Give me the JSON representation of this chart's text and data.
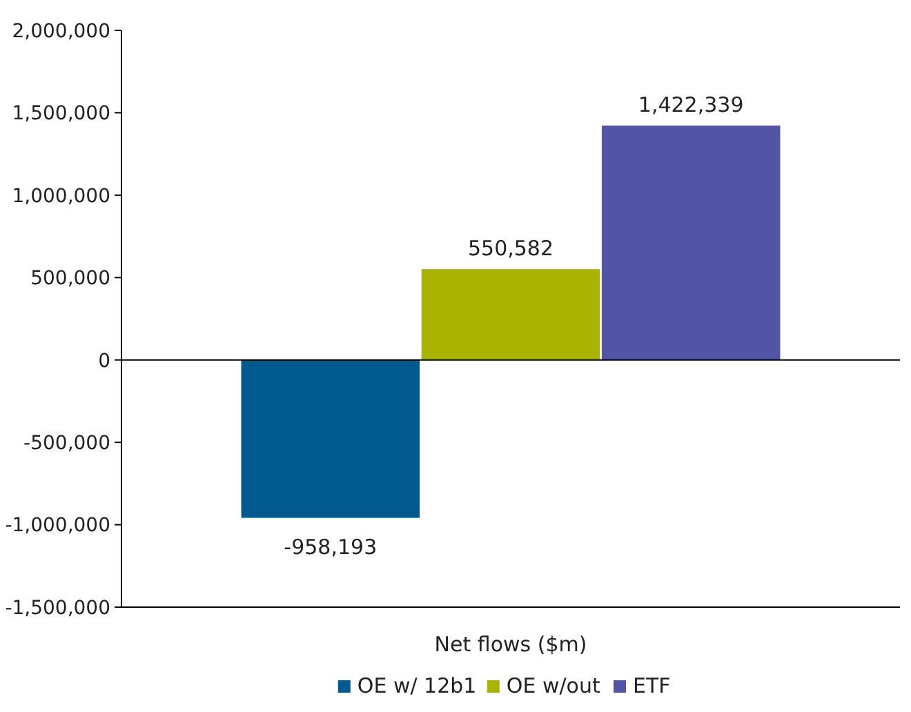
{
  "chart_data": {
    "type": "bar",
    "categories": [
      "Net flows ($m)"
    ],
    "series": [
      {
        "name": "OE w/ 12b1",
        "color": "#00598f",
        "values": [
          -958193
        ],
        "value_labels": [
          "-958,193"
        ]
      },
      {
        "name": "OE w/out",
        "color": "#a8b400",
        "values": [
          550582
        ],
        "value_labels": [
          "550,582"
        ]
      },
      {
        "name": "ETF",
        "color": "#5254a6",
        "values": [
          1422339
        ],
        "value_labels": [
          "1,422,339"
        ]
      }
    ],
    "ylim": [
      -1500000,
      2000000
    ],
    "yticks": [
      {
        "value": -1500000,
        "label": "-1,500,000"
      },
      {
        "value": -1000000,
        "label": "-1,000,000"
      },
      {
        "value": -500000,
        "label": "-500,000"
      },
      0,
      {
        "value": 500000,
        "label": "500,000"
      },
      {
        "value": 1000000,
        "label": "1,000,000"
      },
      {
        "value": 1500000,
        "label": "1,500,000"
      },
      {
        "value": 2000000,
        "label": "2,000,000"
      }
    ],
    "legend": "bottom"
  }
}
